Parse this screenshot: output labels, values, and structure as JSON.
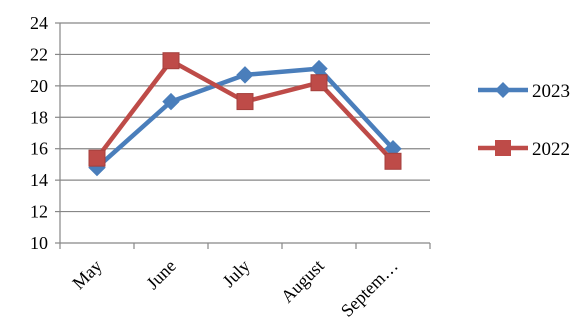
{
  "chart_data": {
    "type": "line",
    "categories": [
      "May",
      "June",
      "July",
      "August",
      "Septem…"
    ],
    "series": [
      {
        "name": "2023",
        "values": [
          14.8,
          19.0,
          20.7,
          21.1,
          16.0
        ],
        "color": "#4a7ebb",
        "marker": "diamond"
      },
      {
        "name": "2022",
        "values": [
          15.4,
          21.6,
          19.0,
          20.2,
          15.2
        ],
        "color": "#be4b48",
        "marker": "square"
      }
    ],
    "ylim": [
      10,
      24
    ],
    "yticks": [
      10,
      12,
      14,
      16,
      18,
      20,
      22,
      24
    ],
    "grid": true,
    "legend_position": "right",
    "title": "",
    "xlabel": "",
    "ylabel": ""
  }
}
